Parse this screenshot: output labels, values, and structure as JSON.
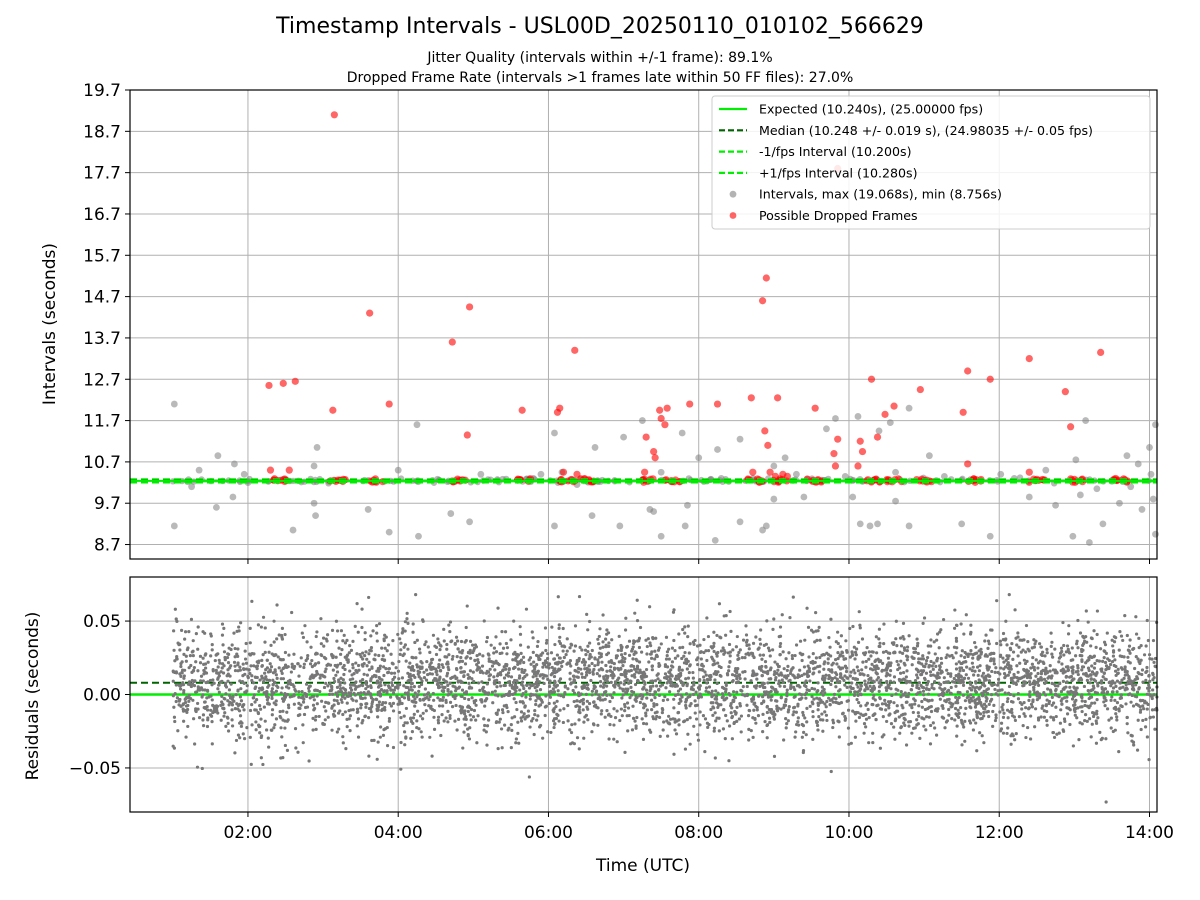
{
  "figure": {
    "title": "Timestamp Intervals - USL00D_20250110_010102_566629",
    "subtitle_jitter": "Jitter Quality (intervals within +/-1 frame): 89.1%",
    "subtitle_dropped": "Dropped Frame Rate (intervals >1 frames late within 50 FF files): 27.0%"
  },
  "chart_data": [
    {
      "type": "scatter",
      "name": "intervals",
      "ylabel": "Intervals (seconds)",
      "xlabel": "",
      "xlim_hours": [
        0.43,
        14.1
      ],
      "ylim": [
        8.35,
        19.7
      ],
      "yticks": [
        8.7,
        9.7,
        10.7,
        11.7,
        12.7,
        13.7,
        14.7,
        15.7,
        16.7,
        17.7,
        18.7,
        19.7
      ],
      "ytick_labels": [
        "8.7",
        "9.7",
        "10.7",
        "11.7",
        "12.7",
        "13.7",
        "14.7",
        "15.7",
        "16.7",
        "17.7",
        "18.7",
        "19.7"
      ],
      "grid": true,
      "legend_position": "top-right",
      "colors": {
        "expected": "#00ee00",
        "median": "#006400",
        "interval_lines": "#00ee00",
        "intervals": "#808080",
        "dropped": "#ff0000"
      },
      "lines": {
        "expected": 10.24,
        "median": 10.248,
        "lower_interval": 10.2,
        "upper_interval": 10.28
      },
      "legend": [
        "Expected (10.240s), (25.00000 fps)",
        "Median (10.248 +/- 0.019 s), (24.98035 +/- 0.05 fps)",
        "-1/fps Interval (10.200s)",
        "+1/fps Interval (10.280s)",
        "Intervals, max (19.068s), min (8.756s)",
        "Possible Dropped Frames"
      ],
      "series": [
        {
          "name": "Intervals, max (19.068s), min (8.756s)",
          "points": [
            [
              1.02,
              12.1
            ],
            [
              1.02,
              9.15
            ],
            [
              1.25,
              10.1
            ],
            [
              1.35,
              10.5
            ],
            [
              1.6,
              10.85
            ],
            [
              1.58,
              9.6
            ],
            [
              1.8,
              9.85
            ],
            [
              1.82,
              10.65
            ],
            [
              1.95,
              10.4
            ],
            [
              2.0,
              10.2
            ],
            [
              2.6,
              9.05
            ],
            [
              2.88,
              9.7
            ],
            [
              2.9,
              9.4
            ],
            [
              2.92,
              11.05
            ],
            [
              2.88,
              10.6
            ],
            [
              3.6,
              9.55
            ],
            [
              3.88,
              9.0
            ],
            [
              4.0,
              10.5
            ],
            [
              4.25,
              11.6
            ],
            [
              4.27,
              8.9
            ],
            [
              4.7,
              9.45
            ],
            [
              4.95,
              9.25
            ],
            [
              5.1,
              10.4
            ],
            [
              5.8,
              10.3
            ],
            [
              5.9,
              10.4
            ],
            [
              6.08,
              9.15
            ],
            [
              6.08,
              11.4
            ],
            [
              6.18,
              10.45
            ],
            [
              6.38,
              10.15
            ],
            [
              6.58,
              9.4
            ],
            [
              6.62,
              11.05
            ],
            [
              6.95,
              9.15
            ],
            [
              7.0,
              11.3
            ],
            [
              7.25,
              11.7
            ],
            [
              7.35,
              9.55
            ],
            [
              7.4,
              9.5
            ],
            [
              7.5,
              8.9
            ],
            [
              7.5,
              10.45
            ],
            [
              7.78,
              11.4
            ],
            [
              7.82,
              9.15
            ],
            [
              7.85,
              9.65
            ],
            [
              8.0,
              10.8
            ],
            [
              8.22,
              8.8
            ],
            [
              8.25,
              11.0
            ],
            [
              8.3,
              10.3
            ],
            [
              8.55,
              9.25
            ],
            [
              8.55,
              11.25
            ],
            [
              8.85,
              9.05
            ],
            [
              8.9,
              9.15
            ],
            [
              9.0,
              10.6
            ],
            [
              9.0,
              9.8
            ],
            [
              9.15,
              10.8
            ],
            [
              9.3,
              10.4
            ],
            [
              9.4,
              9.85
            ],
            [
              9.7,
              11.5
            ],
            [
              9.82,
              11.75
            ],
            [
              9.95,
              10.35
            ],
            [
              10.05,
              9.85
            ],
            [
              10.12,
              11.8
            ],
            [
              10.15,
              9.2
            ],
            [
              10.28,
              9.15
            ],
            [
              10.38,
              9.2
            ],
            [
              10.4,
              11.45
            ],
            [
              10.55,
              11.65
            ],
            [
              10.62,
              9.75
            ],
            [
              10.62,
              10.45
            ],
            [
              10.8,
              9.15
            ],
            [
              10.8,
              12.0
            ],
            [
              11.07,
              10.85
            ],
            [
              11.27,
              10.35
            ],
            [
              11.5,
              9.2
            ],
            [
              11.88,
              8.9
            ],
            [
              12.02,
              10.4
            ],
            [
              12.2,
              10.3
            ],
            [
              12.4,
              9.85
            ],
            [
              12.62,
              10.5
            ],
            [
              12.75,
              9.65
            ],
            [
              12.98,
              8.9
            ],
            [
              13.02,
              10.75
            ],
            [
              13.08,
              9.9
            ],
            [
              13.15,
              11.7
            ],
            [
              13.2,
              8.75
            ],
            [
              13.3,
              10.05
            ],
            [
              13.38,
              9.2
            ],
            [
              13.6,
              9.7
            ],
            [
              13.7,
              10.85
            ],
            [
              13.75,
              10.1
            ],
            [
              13.85,
              10.65
            ],
            [
              13.9,
              9.55
            ],
            [
              14.0,
              11.05
            ],
            [
              14.05,
              9.8
            ],
            [
              14.08,
              11.6
            ],
            [
              14.08,
              8.95
            ],
            [
              14.02,
              10.4
            ]
          ]
        },
        {
          "name": "Possible Dropped Frames",
          "points": [
            [
              2.28,
              12.55
            ],
            [
              2.3,
              10.5
            ],
            [
              2.47,
              12.6
            ],
            [
              2.55,
              10.5
            ],
            [
              2.63,
              12.65
            ],
            [
              3.13,
              11.95
            ],
            [
              3.15,
              19.1
            ],
            [
              3.62,
              14.3
            ],
            [
              3.88,
              12.1
            ],
            [
              4.72,
              13.6
            ],
            [
              4.92,
              11.35
            ],
            [
              4.95,
              14.45
            ],
            [
              5.65,
              11.95
            ],
            [
              6.12,
              11.9
            ],
            [
              6.15,
              12.0
            ],
            [
              6.2,
              10.45
            ],
            [
              6.35,
              13.4
            ],
            [
              6.38,
              10.4
            ],
            [
              7.28,
              10.45
            ],
            [
              7.3,
              11.3
            ],
            [
              7.4,
              10.95
            ],
            [
              7.42,
              10.8
            ],
            [
              7.48,
              11.95
            ],
            [
              7.5,
              11.75
            ],
            [
              7.55,
              11.6
            ],
            [
              7.58,
              12.0
            ],
            [
              7.88,
              12.1
            ],
            [
              8.25,
              12.1
            ],
            [
              8.7,
              12.25
            ],
            [
              8.72,
              10.45
            ],
            [
              8.85,
              14.6
            ],
            [
              8.9,
              15.15
            ],
            [
              8.88,
              11.45
            ],
            [
              8.92,
              11.1
            ],
            [
              8.95,
              10.45
            ],
            [
              9.02,
              10.35
            ],
            [
              9.05,
              12.25
            ],
            [
              9.12,
              10.4
            ],
            [
              9.18,
              10.35
            ],
            [
              9.55,
              12.0
            ],
            [
              9.85,
              17.8
            ],
            [
              9.85,
              11.25
            ],
            [
              9.82,
              10.6
            ],
            [
              9.8,
              10.9
            ],
            [
              10.12,
              10.6
            ],
            [
              10.15,
              11.2
            ],
            [
              10.18,
              10.95
            ],
            [
              10.3,
              12.7
            ],
            [
              10.38,
              11.3
            ],
            [
              10.48,
              11.85
            ],
            [
              10.6,
              12.05
            ],
            [
              10.95,
              12.45
            ],
            [
              11.52,
              11.9
            ],
            [
              11.58,
              10.65
            ],
            [
              11.58,
              12.9
            ],
            [
              11.88,
              12.7
            ],
            [
              12.4,
              13.2
            ],
            [
              12.4,
              10.45
            ],
            [
              12.88,
              12.4
            ],
            [
              12.95,
              11.55
            ],
            [
              13.35,
              13.35
            ],
            [
              13.55,
              10.3
            ]
          ]
        }
      ]
    },
    {
      "type": "scatter",
      "name": "residuals",
      "ylabel": "Residuals (seconds)",
      "xlabel": "Time (UTC)",
      "xlim_hours": [
        0.43,
        14.1
      ],
      "ylim": [
        -0.08,
        0.08
      ],
      "yticks": [
        -0.05,
        0.0,
        0.05
      ],
      "ytick_labels": [
        "−0.05",
        "0.00",
        "0.05"
      ],
      "xticks_hours": [
        2,
        4,
        6,
        8,
        10,
        12,
        14
      ],
      "xtick_labels": [
        "02:00",
        "04:00",
        "06:00",
        "08:00",
        "10:00",
        "12:00",
        "14:00"
      ],
      "grid": true,
      "lines": {
        "expected": 0.0,
        "median": 0.008
      },
      "residual_sd": 0.019,
      "residual_count": 4800,
      "time_range_hours": [
        1.0,
        14.1
      ]
    }
  ]
}
